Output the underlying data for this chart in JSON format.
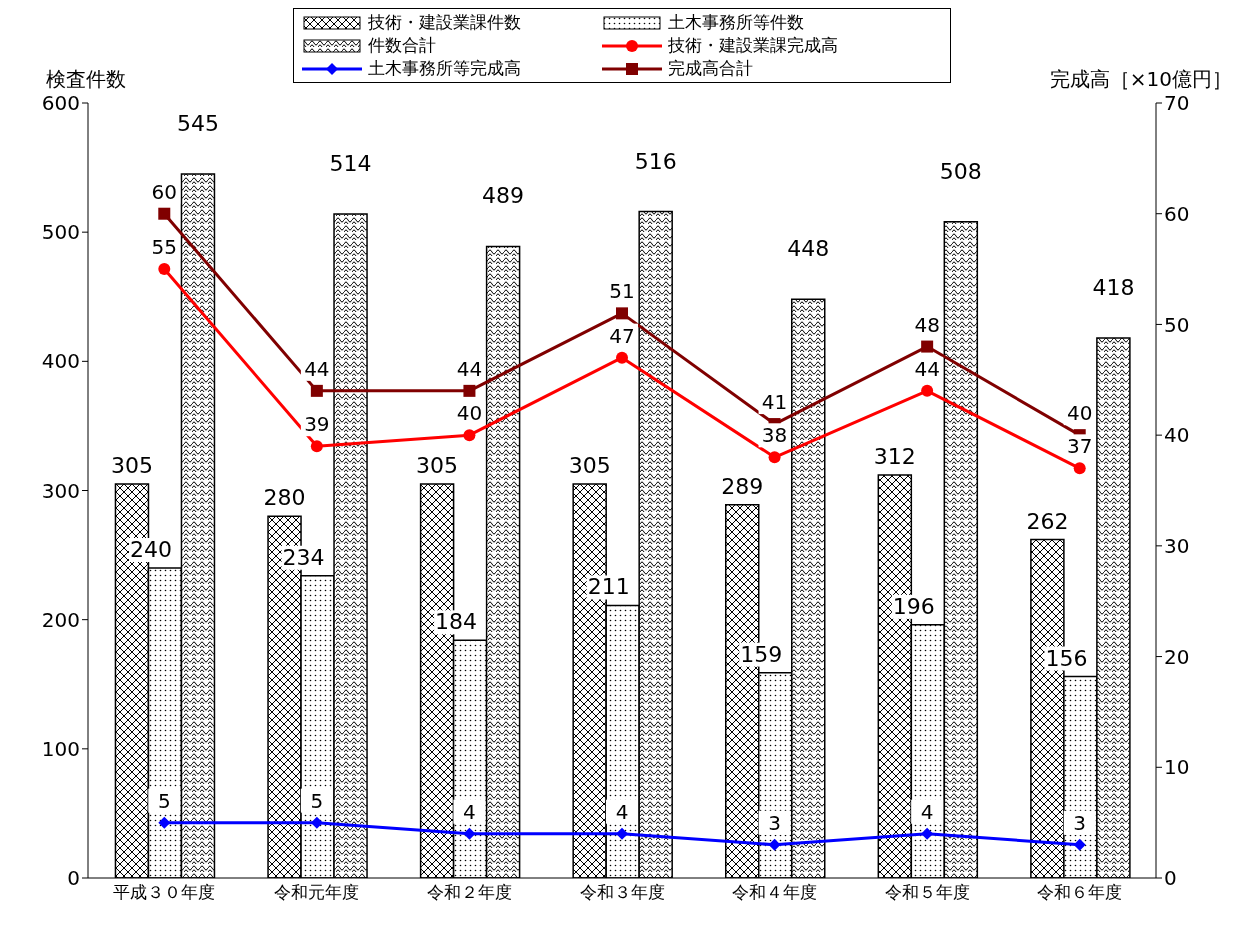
{
  "chart_data": {
    "type": "bar",
    "ylabel": "検査件数",
    "y2label": "完成高［×10億円］",
    "categories": [
      "平成３０年度",
      "令和元年度",
      "令和２年度",
      "令和３年度",
      "令和４年度",
      "令和５年度",
      "令和６年度"
    ],
    "series": [
      {
        "name": "技術・建設業課件数",
        "color": "#000000",
        "values": [
          305,
          280,
          305,
          305,
          289,
          312,
          262
        ]
      },
      {
        "name": "土木事務所等件数",
        "color": "#000000",
        "values": [
          240,
          234,
          184,
          211,
          159,
          196,
          156
        ]
      },
      {
        "name": "件数合計",
        "color": "#000000",
        "values": [
          545,
          514,
          489,
          516,
          448,
          508,
          418
        ]
      },
      {
        "name": "技術・建設業課完成高",
        "type": "line",
        "axis": "y2",
        "color": "#ff0000",
        "marker": "circle",
        "values": [
          55,
          39,
          40,
          47,
          38,
          44,
          37
        ]
      },
      {
        "name": "土木事務所等完成高",
        "type": "line",
        "axis": "y2",
        "color": "#0000ff",
        "marker": "diamond",
        "values": [
          5,
          5,
          4,
          4,
          3,
          4,
          3
        ]
      },
      {
        "name": "完成高合計",
        "type": "line",
        "axis": "y2",
        "color": "#800000",
        "marker": "square",
        "values": [
          60,
          44,
          44,
          51,
          41,
          48,
          40
        ]
      }
    ],
    "ylim": [
      0,
      600
    ],
    "yticks": [
      0,
      100,
      200,
      300,
      400,
      500,
      600
    ],
    "y2lim": [
      0,
      70
    ],
    "y2ticks": [
      0,
      10,
      20,
      30,
      40,
      50,
      60,
      70
    ],
    "data_labels": true,
    "grid": false,
    "legend": "top",
    "line_style": "solid"
  }
}
